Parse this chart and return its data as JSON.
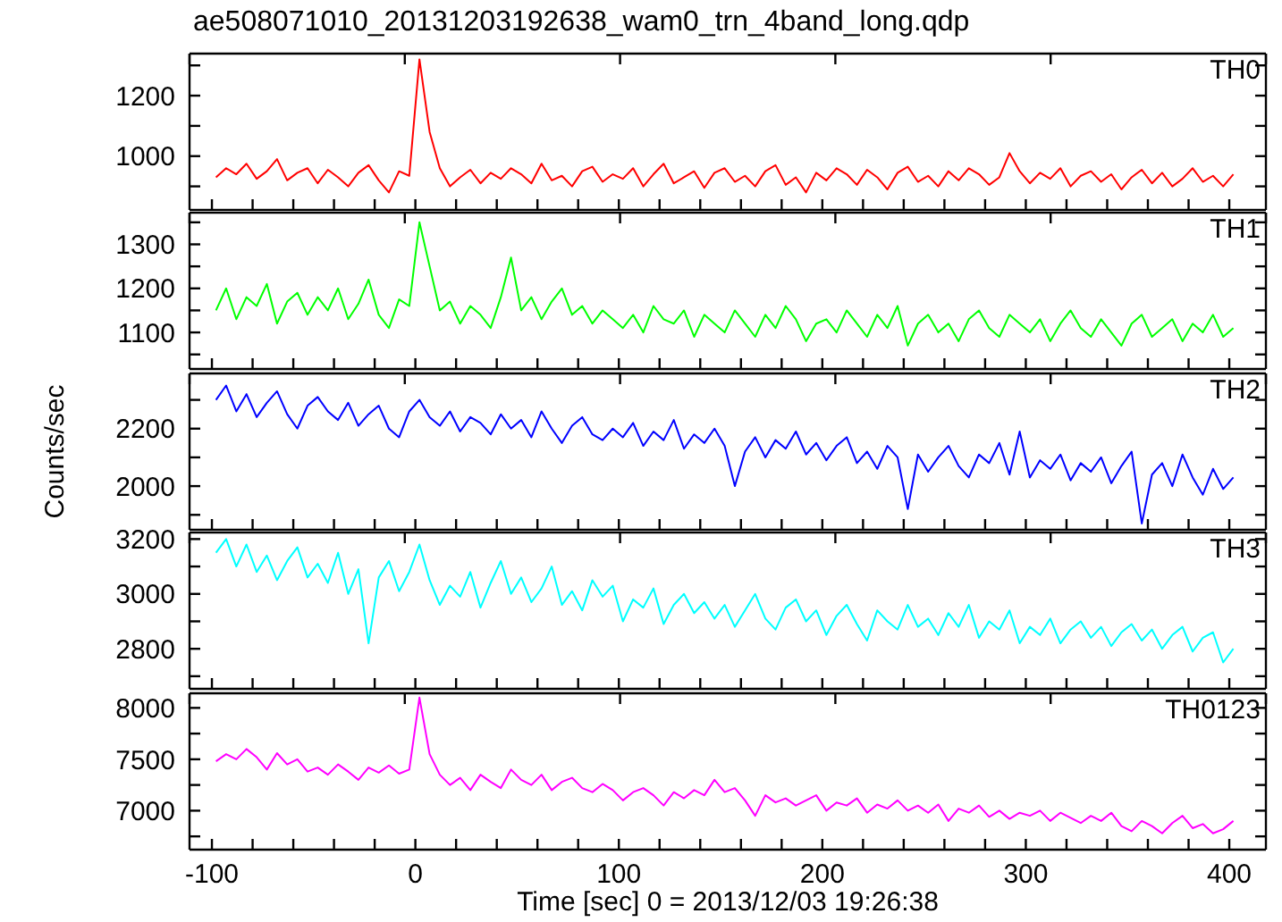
{
  "chart_data": [
    {
      "type": "line",
      "title": "ae508071010_20131203192638_wam0_trn_4band_long.qdp",
      "tick_labels": "y",
      "xlim": [
        -111,
        418
      ],
      "xticks": [
        {
          "value": -100,
          "label": null
        },
        {
          "value": -80,
          "label": null
        },
        {
          "value": -60,
          "label": null
        },
        {
          "value": -40,
          "label": null
        },
        {
          "value": -20,
          "label": null
        },
        {
          "value": 0,
          "label": null
        },
        {
          "value": 20,
          "label": null
        },
        {
          "value": 40,
          "label": null
        },
        {
          "value": 60,
          "label": null
        },
        {
          "value": 80,
          "label": null
        },
        {
          "value": 100,
          "label": null
        },
        {
          "value": 120,
          "label": null
        },
        {
          "value": 140,
          "label": null
        },
        {
          "value": 160,
          "label": null
        },
        {
          "value": 180,
          "label": null
        },
        {
          "value": 200,
          "label": null
        },
        {
          "value": 220,
          "label": null
        },
        {
          "value": 240,
          "label": null
        },
        {
          "value": 260,
          "label": null
        },
        {
          "value": 280,
          "label": null
        },
        {
          "value": 300,
          "label": null
        },
        {
          "value": 320,
          "label": null
        },
        {
          "value": 340,
          "label": null
        },
        {
          "value": 360,
          "label": null
        },
        {
          "value": 380,
          "label": null
        },
        {
          "value": 400,
          "label": null
        }
      ],
      "ylim": [
        822,
        1339
      ],
      "yticks": [
        {
          "value": 900,
          "label": null
        },
        1000,
        {
          "value": 1100,
          "label": null
        },
        1200,
        {
          "value": 1300,
          "label": null
        }
      ],
      "x": [
        -98,
        -93,
        -88,
        -83,
        -78,
        -73,
        -68,
        -63,
        -58,
        -53,
        -48,
        -43,
        -38,
        -33,
        -28,
        -23,
        -18,
        -13,
        -8,
        -3,
        2,
        7,
        12,
        17,
        22,
        27,
        32,
        37,
        42,
        47,
        52,
        57,
        62,
        67,
        72,
        77,
        82,
        87,
        92,
        97,
        102,
        107,
        112,
        117,
        122,
        127,
        132,
        137,
        142,
        147,
        152,
        157,
        162,
        167,
        172,
        177,
        182,
        187,
        192,
        197,
        202,
        207,
        212,
        217,
        222,
        227,
        232,
        237,
        242,
        247,
        252,
        257,
        262,
        267,
        272,
        277,
        282,
        287,
        292,
        297,
        302,
        307,
        312,
        317,
        322,
        327,
        332,
        337,
        342,
        347,
        352,
        357,
        362,
        367,
        372,
        377,
        382,
        387,
        392,
        397,
        402
      ],
      "series": [
        {
          "name": "TH0",
          "color": "#ff0000",
          "values": [
            930,
            960,
            940,
            975,
            925,
            950,
            990,
            920,
            945,
            960,
            910,
            955,
            930,
            900,
            945,
            970,
            920,
            880,
            950,
            935,
            1320,
            1080,
            960,
            900,
            930,
            955,
            910,
            945,
            925,
            960,
            940,
            910,
            975,
            920,
            935,
            900,
            950,
            965,
            915,
            940,
            925,
            960,
            900,
            940,
            975,
            910,
            930,
            950,
            895,
            945,
            960,
            915,
            935,
            900,
            950,
            970,
            905,
            930,
            880,
            945,
            920,
            960,
            940,
            905,
            955,
            930,
            890,
            945,
            965,
            915,
            935,
            900,
            950,
            920,
            960,
            940,
            905,
            930,
            1010,
            950,
            910,
            945,
            925,
            960,
            900,
            935,
            950,
            915,
            940,
            890,
            930,
            955,
            910,
            945,
            900,
            925,
            960,
            915,
            935,
            900,
            940
          ]
        }
      ]
    },
    {
      "type": "line",
      "tick_labels": "y",
      "xlim": [
        -111,
        418
      ],
      "xticks": [
        {
          "value": -100,
          "label": null
        },
        {
          "value": -80,
          "label": null
        },
        {
          "value": -60,
          "label": null
        },
        {
          "value": -40,
          "label": null
        },
        {
          "value": -20,
          "label": null
        },
        {
          "value": 0,
          "label": null
        },
        {
          "value": 20,
          "label": null
        },
        {
          "value": 40,
          "label": null
        },
        {
          "value": 60,
          "label": null
        },
        {
          "value": 80,
          "label": null
        },
        {
          "value": 100,
          "label": null
        },
        {
          "value": 120,
          "label": null
        },
        {
          "value": 140,
          "label": null
        },
        {
          "value": 160,
          "label": null
        },
        {
          "value": 180,
          "label": null
        },
        {
          "value": 200,
          "label": null
        },
        {
          "value": 220,
          "label": null
        },
        {
          "value": 240,
          "label": null
        },
        {
          "value": 260,
          "label": null
        },
        {
          "value": 280,
          "label": null
        },
        {
          "value": 300,
          "label": null
        },
        {
          "value": 320,
          "label": null
        },
        {
          "value": 340,
          "label": null
        },
        {
          "value": 360,
          "label": null
        },
        {
          "value": 380,
          "label": null
        },
        {
          "value": 400,
          "label": null
        }
      ],
      "ylim": [
        1017,
        1372
      ],
      "yticks": [
        {
          "value": 1050,
          "label": null
        },
        1100,
        {
          "value": 1150,
          "label": null
        },
        1200,
        {
          "value": 1250,
          "label": null
        },
        1300,
        {
          "value": 1350,
          "label": null
        }
      ],
      "x": [
        -98,
        -93,
        -88,
        -83,
        -78,
        -73,
        -68,
        -63,
        -58,
        -53,
        -48,
        -43,
        -38,
        -33,
        -28,
        -23,
        -18,
        -13,
        -8,
        -3,
        2,
        7,
        12,
        17,
        22,
        27,
        32,
        37,
        42,
        47,
        52,
        57,
        62,
        67,
        72,
        77,
        82,
        87,
        92,
        97,
        102,
        107,
        112,
        117,
        122,
        127,
        132,
        137,
        142,
        147,
        152,
        157,
        162,
        167,
        172,
        177,
        182,
        187,
        192,
        197,
        202,
        207,
        212,
        217,
        222,
        227,
        232,
        237,
        242,
        247,
        252,
        257,
        262,
        267,
        272,
        277,
        282,
        287,
        292,
        297,
        302,
        307,
        312,
        317,
        322,
        327,
        332,
        337,
        342,
        347,
        352,
        357,
        362,
        367,
        372,
        377,
        382,
        387,
        392,
        397,
        402
      ],
      "series": [
        {
          "name": "TH1",
          "color": "#00ff00",
          "values": [
            1150,
            1200,
            1130,
            1180,
            1160,
            1210,
            1120,
            1170,
            1190,
            1140,
            1180,
            1150,
            1200,
            1130,
            1165,
            1220,
            1140,
            1110,
            1175,
            1160,
            1350,
            1250,
            1150,
            1170,
            1120,
            1160,
            1140,
            1110,
            1180,
            1270,
            1150,
            1180,
            1130,
            1170,
            1200,
            1140,
            1160,
            1120,
            1150,
            1130,
            1110,
            1140,
            1100,
            1160,
            1130,
            1120,
            1150,
            1090,
            1140,
            1120,
            1100,
            1150,
            1120,
            1090,
            1140,
            1110,
            1160,
            1130,
            1080,
            1120,
            1130,
            1100,
            1150,
            1120,
            1090,
            1140,
            1110,
            1160,
            1070,
            1120,
            1140,
            1100,
            1120,
            1080,
            1130,
            1150,
            1110,
            1090,
            1140,
            1120,
            1100,
            1130,
            1080,
            1120,
            1150,
            1110,
            1090,
            1130,
            1100,
            1070,
            1120,
            1140,
            1090,
            1110,
            1130,
            1080,
            1120,
            1100,
            1140,
            1090,
            1110
          ]
        }
      ]
    },
    {
      "type": "line",
      "ylabel": "Counts/sec",
      "tick_labels": "y",
      "xlim": [
        -111,
        418
      ],
      "xticks": [
        {
          "value": -100,
          "label": null
        },
        {
          "value": -80,
          "label": null
        },
        {
          "value": -60,
          "label": null
        },
        {
          "value": -40,
          "label": null
        },
        {
          "value": -20,
          "label": null
        },
        {
          "value": 0,
          "label": null
        },
        {
          "value": 20,
          "label": null
        },
        {
          "value": 40,
          "label": null
        },
        {
          "value": 60,
          "label": null
        },
        {
          "value": 80,
          "label": null
        },
        {
          "value": 100,
          "label": null
        },
        {
          "value": 120,
          "label": null
        },
        {
          "value": 140,
          "label": null
        },
        {
          "value": 160,
          "label": null
        },
        {
          "value": 180,
          "label": null
        },
        {
          "value": 200,
          "label": null
        },
        {
          "value": 220,
          "label": null
        },
        {
          "value": 240,
          "label": null
        },
        {
          "value": 260,
          "label": null
        },
        {
          "value": 280,
          "label": null
        },
        {
          "value": 300,
          "label": null
        },
        {
          "value": 320,
          "label": null
        },
        {
          "value": 340,
          "label": null
        },
        {
          "value": 360,
          "label": null
        },
        {
          "value": 380,
          "label": null
        },
        {
          "value": 400,
          "label": null
        }
      ],
      "ylim": [
        1848,
        2392
      ],
      "yticks": [
        {
          "value": 1900,
          "label": null
        },
        2000,
        {
          "value": 2100,
          "label": null
        },
        2200,
        {
          "value": 2300,
          "label": null
        }
      ],
      "x": [
        -98,
        -93,
        -88,
        -83,
        -78,
        -73,
        -68,
        -63,
        -58,
        -53,
        -48,
        -43,
        -38,
        -33,
        -28,
        -23,
        -18,
        -13,
        -8,
        -3,
        2,
        7,
        12,
        17,
        22,
        27,
        32,
        37,
        42,
        47,
        52,
        57,
        62,
        67,
        72,
        77,
        82,
        87,
        92,
        97,
        102,
        107,
        112,
        117,
        122,
        127,
        132,
        137,
        142,
        147,
        152,
        157,
        162,
        167,
        172,
        177,
        182,
        187,
        192,
        197,
        202,
        207,
        212,
        217,
        222,
        227,
        232,
        237,
        242,
        247,
        252,
        257,
        262,
        267,
        272,
        277,
        282,
        287,
        292,
        297,
        302,
        307,
        312,
        317,
        322,
        327,
        332,
        337,
        342,
        347,
        352,
        357,
        362,
        367,
        372,
        377,
        382,
        387,
        392,
        397,
        402
      ],
      "series": [
        {
          "name": "TH2",
          "color": "#0000ff",
          "values": [
            2300,
            2350,
            2260,
            2320,
            2240,
            2290,
            2330,
            2250,
            2200,
            2280,
            2310,
            2260,
            2230,
            2290,
            2210,
            2250,
            2280,
            2200,
            2170,
            2260,
            2300,
            2240,
            2210,
            2260,
            2190,
            2240,
            2220,
            2180,
            2250,
            2200,
            2230,
            2170,
            2260,
            2200,
            2150,
            2210,
            2240,
            2180,
            2160,
            2200,
            2170,
            2220,
            2140,
            2190,
            2160,
            2230,
            2130,
            2180,
            2150,
            2200,
            2140,
            2000,
            2120,
            2170,
            2100,
            2160,
            2130,
            2190,
            2110,
            2150,
            2090,
            2140,
            2170,
            2080,
            2120,
            2060,
            2140,
            2100,
            1920,
            2110,
            2050,
            2100,
            2140,
            2070,
            2030,
            2110,
            2080,
            2150,
            2040,
            2190,
            2030,
            2090,
            2060,
            2110,
            2020,
            2080,
            2050,
            2100,
            2010,
            2070,
            2120,
            1870,
            2040,
            2080,
            2000,
            2110,
            2030,
            1970,
            2060,
            1990,
            2030
          ]
        }
      ]
    },
    {
      "type": "line",
      "tick_labels": "y",
      "xlim": [
        -111,
        418
      ],
      "xticks": [
        {
          "value": -100,
          "label": null
        },
        {
          "value": -80,
          "label": null
        },
        {
          "value": -60,
          "label": null
        },
        {
          "value": -40,
          "label": null
        },
        {
          "value": -20,
          "label": null
        },
        {
          "value": 0,
          "label": null
        },
        {
          "value": 20,
          "label": null
        },
        {
          "value": 40,
          "label": null
        },
        {
          "value": 60,
          "label": null
        },
        {
          "value": 80,
          "label": null
        },
        {
          "value": 100,
          "label": null
        },
        {
          "value": 120,
          "label": null
        },
        {
          "value": 140,
          "label": null
        },
        {
          "value": 160,
          "label": null
        },
        {
          "value": 180,
          "label": null
        },
        {
          "value": 200,
          "label": null
        },
        {
          "value": 220,
          "label": null
        },
        {
          "value": 240,
          "label": null
        },
        {
          "value": 260,
          "label": null
        },
        {
          "value": 280,
          "label": null
        },
        {
          "value": 300,
          "label": null
        },
        {
          "value": 320,
          "label": null
        },
        {
          "value": 340,
          "label": null
        },
        {
          "value": 360,
          "label": null
        },
        {
          "value": 380,
          "label": null
        },
        {
          "value": 400,
          "label": null
        }
      ],
      "ylim": [
        2654,
        3224
      ],
      "yticks": [
        {
          "value": 2700,
          "label": null
        },
        2800,
        {
          "value": 2900,
          "label": null
        },
        3000,
        {
          "value": 3100,
          "label": null
        },
        3200
      ],
      "x": [
        -98,
        -93,
        -88,
        -83,
        -78,
        -73,
        -68,
        -63,
        -58,
        -53,
        -48,
        -43,
        -38,
        -33,
        -28,
        -23,
        -18,
        -13,
        -8,
        -3,
        2,
        7,
        12,
        17,
        22,
        27,
        32,
        37,
        42,
        47,
        52,
        57,
        62,
        67,
        72,
        77,
        82,
        87,
        92,
        97,
        102,
        107,
        112,
        117,
        122,
        127,
        132,
        137,
        142,
        147,
        152,
        157,
        162,
        167,
        172,
        177,
        182,
        187,
        192,
        197,
        202,
        207,
        212,
        217,
        222,
        227,
        232,
        237,
        242,
        247,
        252,
        257,
        262,
        267,
        272,
        277,
        282,
        287,
        292,
        297,
        302,
        307,
        312,
        317,
        322,
        327,
        332,
        337,
        342,
        347,
        352,
        357,
        362,
        367,
        372,
        377,
        382,
        387,
        392,
        397,
        402
      ],
      "series": [
        {
          "name": "TH3",
          "color": "#00ffff",
          "values": [
            3150,
            3200,
            3100,
            3180,
            3080,
            3140,
            3050,
            3120,
            3170,
            3060,
            3110,
            3040,
            3150,
            3000,
            3090,
            2820,
            3060,
            3120,
            3010,
            3080,
            3180,
            3050,
            2960,
            3030,
            2990,
            3080,
            2950,
            3040,
            3120,
            3000,
            3060,
            2970,
            3020,
            3100,
            2960,
            3010,
            2940,
            3050,
            2990,
            3030,
            2900,
            2980,
            2950,
            3020,
            2890,
            2960,
            3000,
            2930,
            2970,
            2910,
            2960,
            2880,
            2940,
            3000,
            2910,
            2870,
            2950,
            2980,
            2900,
            2940,
            2850,
            2920,
            2960,
            2890,
            2830,
            2940,
            2900,
            2870,
            2960,
            2880,
            2910,
            2850,
            2930,
            2880,
            2960,
            2840,
            2900,
            2870,
            2940,
            2820,
            2880,
            2850,
            2910,
            2820,
            2870,
            2900,
            2840,
            2880,
            2810,
            2860,
            2890,
            2830,
            2870,
            2800,
            2850,
            2880,
            2790,
            2840,
            2860,
            2750,
            2800
          ]
        }
      ]
    },
    {
      "type": "line",
      "xlabel": "Time [sec] 0 = 2013/12/03 19:26:38",
      "xlim": [
        -111,
        418
      ],
      "xticks": [
        -100,
        {
          "value": -80,
          "label": null
        },
        {
          "value": -60,
          "label": null
        },
        {
          "value": -40,
          "label": null
        },
        {
          "value": -20,
          "label": null
        },
        0,
        {
          "value": 20,
          "label": null
        },
        {
          "value": 40,
          "label": null
        },
        {
          "value": 60,
          "label": null
        },
        {
          "value": 80,
          "label": null
        },
        100,
        {
          "value": 120,
          "label": null
        },
        {
          "value": 140,
          "label": null
        },
        {
          "value": 160,
          "label": null
        },
        {
          "value": 180,
          "label": null
        },
        200,
        {
          "value": 220,
          "label": null
        },
        {
          "value": 240,
          "label": null
        },
        {
          "value": 260,
          "label": null
        },
        {
          "value": 280,
          "label": null
        },
        300,
        {
          "value": 320,
          "label": null
        },
        {
          "value": 340,
          "label": null
        },
        {
          "value": 360,
          "label": null
        },
        {
          "value": 380,
          "label": null
        },
        400
      ],
      "ylim": [
        6621,
        8142
      ],
      "yticks": [
        {
          "value": 6750,
          "label": null
        },
        7000,
        {
          "value": 7250,
          "label": null
        },
        7500,
        {
          "value": 7750,
          "label": null
        },
        8000
      ],
      "x": [
        -98,
        -93,
        -88,
        -83,
        -78,
        -73,
        -68,
        -63,
        -58,
        -53,
        -48,
        -43,
        -38,
        -33,
        -28,
        -23,
        -18,
        -13,
        -8,
        -3,
        2,
        7,
        12,
        17,
        22,
        27,
        32,
        37,
        42,
        47,
        52,
        57,
        62,
        67,
        72,
        77,
        82,
        87,
        92,
        97,
        102,
        107,
        112,
        117,
        122,
        127,
        132,
        137,
        142,
        147,
        152,
        157,
        162,
        167,
        172,
        177,
        182,
        187,
        192,
        197,
        202,
        207,
        212,
        217,
        222,
        227,
        232,
        237,
        242,
        247,
        252,
        257,
        262,
        267,
        272,
        277,
        282,
        287,
        292,
        297,
        302,
        307,
        312,
        317,
        322,
        327,
        332,
        337,
        342,
        347,
        352,
        357,
        362,
        367,
        372,
        377,
        382,
        387,
        392,
        397,
        402
      ],
      "series": [
        {
          "name": "TH0123",
          "color": "#ff00ff",
          "values": [
            7480,
            7550,
            7500,
            7600,
            7520,
            7400,
            7560,
            7450,
            7500,
            7380,
            7420,
            7350,
            7450,
            7380,
            7300,
            7420,
            7370,
            7440,
            7360,
            7400,
            8100,
            7550,
            7350,
            7250,
            7320,
            7200,
            7350,
            7280,
            7220,
            7400,
            7300,
            7250,
            7350,
            7200,
            7280,
            7320,
            7220,
            7180,
            7260,
            7200,
            7100,
            7180,
            7220,
            7150,
            7050,
            7180,
            7120,
            7200,
            7150,
            7300,
            7180,
            7220,
            7100,
            6950,
            7150,
            7080,
            7120,
            7050,
            7100,
            7150,
            7000,
            7080,
            7050,
            7120,
            6980,
            7060,
            7020,
            7100,
            7000,
            7050,
            6980,
            7060,
            6900,
            7020,
            6980,
            7050,
            6940,
            7000,
            6920,
            6980,
            6950,
            7000,
            6900,
            6980,
            6930,
            6880,
            6950,
            6900,
            6980,
            6850,
            6800,
            6900,
            6850,
            6780,
            6880,
            6950,
            6830,
            6870,
            6780,
            6820,
            6900
          ]
        }
      ]
    }
  ]
}
